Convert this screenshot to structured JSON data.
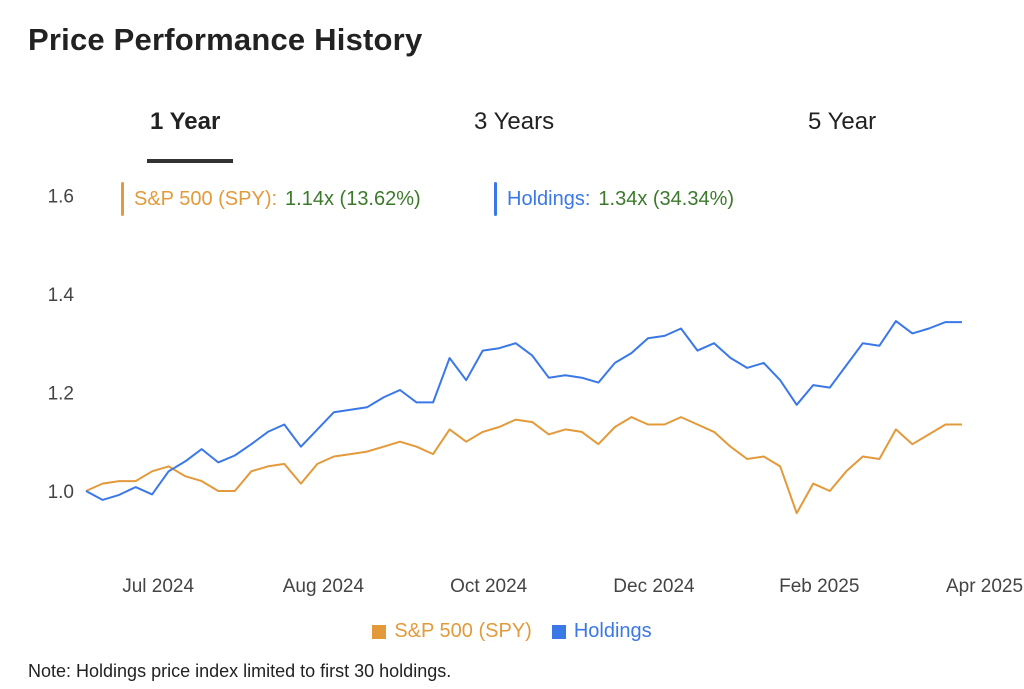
{
  "header": {
    "title": "Price Performance History"
  },
  "tabs": [
    {
      "label": "1 Year",
      "active": true
    },
    {
      "label": "3 Years",
      "active": false
    },
    {
      "label": "5 Year",
      "active": false
    }
  ],
  "legend_top": {
    "spy": {
      "label": "S&P 500 (SPY):",
      "value": "1.14x (13.62%)",
      "color": "#e39a3b"
    },
    "holdings": {
      "label": "Holdings:",
      "value": "1.34x (34.34%)",
      "color": "#3b78e7"
    }
  },
  "legend_bottom": {
    "spy": "S&P 500 (SPY)",
    "holdings": "Holdings"
  },
  "note": "Note: Holdings price index limited to first 30 holdings.",
  "chart_data": {
    "type": "line",
    "title": "",
    "xlabel": "",
    "ylabel": "",
    "ylim": [
      0.9,
      1.6
    ],
    "yticks": [
      "1.0",
      "1.2",
      "1.4",
      "1.6"
    ],
    "ytick_values": [
      1.0,
      1.2,
      1.4,
      1.6
    ],
    "xtick_labels": [
      "Jul 2024",
      "Aug 2024",
      "Oct 2024",
      "Dec 2024",
      "Feb 2025",
      "Apr 2025"
    ],
    "xtick_index": [
      4,
      14,
      24,
      34,
      44,
      54
    ],
    "grid": false,
    "legend": "bottom",
    "series": [
      {
        "name": "S&P 500 (SPY)",
        "color": "#e39a3b",
        "values": [
          1.0,
          1.015,
          1.02,
          1.02,
          1.04,
          1.05,
          1.03,
          1.02,
          1.0,
          1.0,
          1.04,
          1.05,
          1.055,
          1.015,
          1.055,
          1.07,
          1.075,
          1.08,
          1.09,
          1.1,
          1.09,
          1.075,
          1.125,
          1.1,
          1.12,
          1.13,
          1.145,
          1.14,
          1.115,
          1.125,
          1.12,
          1.095,
          1.13,
          1.15,
          1.135,
          1.135,
          1.15,
          1.135,
          1.12,
          1.09,
          1.065,
          1.07,
          1.05,
          0.955,
          1.015,
          1.0,
          1.04,
          1.07,
          1.065,
          1.125,
          1.095,
          1.115,
          1.135,
          1.135
        ]
      },
      {
        "name": "Holdings",
        "color": "#3b78e7",
        "values": [
          1.0,
          0.982,
          0.992,
          1.008,
          0.993,
          1.04,
          1.06,
          1.085,
          1.058,
          1.072,
          1.095,
          1.12,
          1.135,
          1.09,
          1.125,
          1.16,
          1.165,
          1.17,
          1.19,
          1.205,
          1.18,
          1.18,
          1.27,
          1.225,
          1.285,
          1.29,
          1.3,
          1.275,
          1.23,
          1.235,
          1.23,
          1.22,
          1.26,
          1.28,
          1.31,
          1.315,
          1.33,
          1.285,
          1.3,
          1.27,
          1.25,
          1.26,
          1.225,
          1.175,
          1.215,
          1.21,
          1.255,
          1.3,
          1.295,
          1.345,
          1.32,
          1.33,
          1.343,
          1.343
        ]
      }
    ]
  }
}
